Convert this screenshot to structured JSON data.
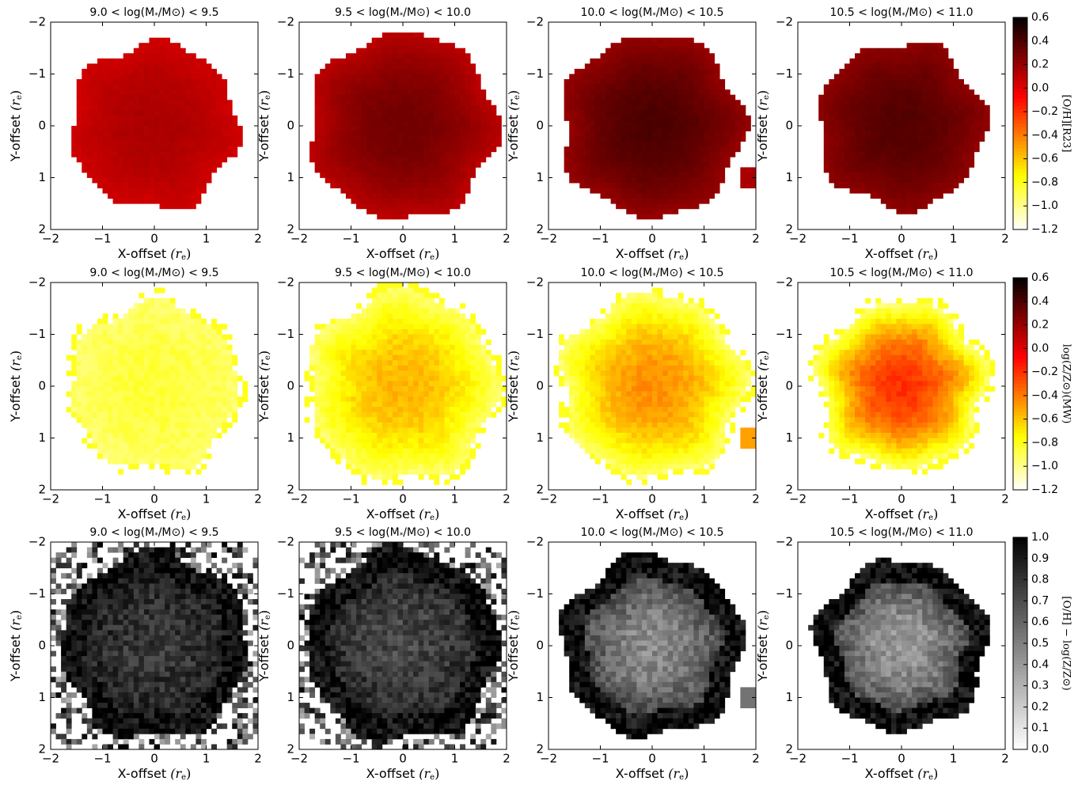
{
  "chart_data": {
    "type": "heatmap",
    "x_ticks": [
      "−2",
      "−1",
      "0",
      "1",
      "2"
    ],
    "y_ticks": [
      "−2",
      "−1",
      "0",
      "1",
      "2"
    ],
    "xlim": [
      -2,
      2
    ],
    "ylim": [
      2,
      -2
    ],
    "rows": [
      {
        "row": 1,
        "quantity": "[O/H][R23]",
        "colorbar_label": "[O/H][R23]",
        "colormap": "hot_r",
        "clim": [
          -1.2,
          0.6
        ],
        "colorbar_ticks": [
          "0.6",
          "0.4",
          "0.2",
          "0.0",
          "−0.2",
          "−0.4",
          "−0.6",
          "−0.8",
          "−1.0",
          "−1.2"
        ],
        "panels": [
          {
            "title_pre": "9.0 < log(M",
            "title_sub": "*",
            "title_post": "/M⊙) < 9.5",
            "xlabel_text": "X-offset ",
            "xlabel_sym": "(r",
            "xlabel_sub": "e",
            "xlabel_end": ")",
            "ylabel_text": "Y-offset ",
            "ylabel_sym": "(r",
            "ylabel_sub": "e",
            "ylabel_end": ")",
            "center_value": 0.15,
            "edge_value": 0.05,
            "radius_re": 1.6,
            "blob": false
          },
          {
            "title_pre": "9.5 < log(M",
            "title_sub": "*",
            "title_post": "/M⊙) < 10.0",
            "xlabel_text": "X-offset ",
            "xlabel_sym": "(r",
            "xlabel_sub": "e",
            "xlabel_end": ")",
            "ylabel_text": "Y-offset ",
            "ylabel_sym": "(r",
            "ylabel_sub": "e",
            "ylabel_end": ")",
            "center_value": 0.3,
            "edge_value": 0.1,
            "radius_re": 1.8,
            "blob": false
          },
          {
            "title_pre": "10.0 < log(M",
            "title_sub": "*",
            "title_post": "/M⊙) < 10.5",
            "xlabel_text": "X-offset ",
            "xlabel_sym": "(r",
            "xlabel_sub": "e",
            "xlabel_end": ")",
            "ylabel_text": "Y-offset ",
            "ylabel_sym": "(r",
            "ylabel_sub": "e",
            "ylabel_end": ")",
            "center_value": 0.4,
            "edge_value": 0.2,
            "radius_re": 1.75,
            "blob": true
          },
          {
            "title_pre": "10.5 < log(M",
            "title_sub": "*",
            "title_post": "/M⊙) < 11.0",
            "xlabel_text": "X-offset ",
            "xlabel_sym": "(r",
            "xlabel_sub": "e",
            "xlabel_end": ")",
            "ylabel_text": "Y-offset ",
            "ylabel_sym": "(r",
            "ylabel_sub": "e",
            "ylabel_end": ")",
            "center_value": 0.38,
            "edge_value": 0.22,
            "radius_re": 1.6,
            "blob": false
          }
        ]
      },
      {
        "row": 2,
        "quantity": "log(Z/Z⊙)(MW)",
        "colorbar_label": "log(Z/Z⊙)(MW)",
        "colormap": "hot_r",
        "clim": [
          -1.2,
          0.6
        ],
        "colorbar_ticks": [
          "0.6",
          "0.4",
          "0.2",
          "0.0",
          "−0.2",
          "−0.4",
          "−0.6",
          "−0.8",
          "−1.0",
          "−1.2"
        ],
        "panels": [
          {
            "title_pre": "9.0 < log(M",
            "title_sub": "*",
            "title_post": "/M⊙) < 9.5",
            "xlabel_text": "X-offset ",
            "xlabel_sym": "(r",
            "xlabel_sub": "e",
            "xlabel_end": ")",
            "ylabel_text": "Y-offset ",
            "ylabel_sym": "(r",
            "ylabel_sub": "e",
            "ylabel_end": ")",
            "center_value": -0.85,
            "edge_value": -0.95,
            "radius_re": 1.6,
            "blob": false
          },
          {
            "title_pre": "9.5 < log(M",
            "title_sub": "*",
            "title_post": "/M⊙) < 10.0",
            "xlabel_text": "X-offset ",
            "xlabel_sym": "(r",
            "xlabel_sub": "e",
            "xlabel_end": ")",
            "ylabel_text": "Y-offset ",
            "ylabel_sym": "(r",
            "ylabel_sub": "e",
            "ylabel_end": ")",
            "center_value": -0.55,
            "edge_value": -0.95,
            "radius_re": 1.8,
            "blob": false
          },
          {
            "title_pre": "10.0 < log(M",
            "title_sub": "*",
            "title_post": "/M⊙) < 10.5",
            "xlabel_text": "X-offset ",
            "xlabel_sym": "(r",
            "xlabel_sub": "e",
            "xlabel_end": ")",
            "ylabel_text": "Y-offset ",
            "ylabel_sym": "(r",
            "ylabel_sub": "e",
            "ylabel_end": ")",
            "center_value": -0.45,
            "edge_value": -0.95,
            "radius_re": 1.75,
            "blob": true
          },
          {
            "title_pre": "10.5 < log(M",
            "title_sub": "*",
            "title_post": "/M⊙) < 11.0",
            "xlabel_text": "X-offset ",
            "xlabel_sym": "(r",
            "xlabel_sub": "e",
            "xlabel_end": ")",
            "ylabel_text": "Y-offset ",
            "ylabel_sym": "(r",
            "ylabel_sub": "e",
            "ylabel_end": ")",
            "center_value": -0.2,
            "edge_value": -0.95,
            "radius_re": 1.6,
            "blob": false
          }
        ]
      },
      {
        "row": 3,
        "quantity": "[O/H] − log(Z/Z⊙)",
        "colorbar_label": "[O/H] − log(Z/Z⊙)",
        "colormap": "gray_r",
        "clim": [
          0.0,
          1.0
        ],
        "colorbar_ticks": [
          "1.0",
          "0.9",
          "0.8",
          "0.7",
          "0.6",
          "0.5",
          "0.4",
          "0.3",
          "0.2",
          "0.1",
          "0.0"
        ],
        "panels": [
          {
            "title_pre": "9.0 < log(M",
            "title_sub": "*",
            "title_post": "/M⊙) < 9.5",
            "xlabel_text": "X-offset ",
            "xlabel_sym": "(r",
            "xlabel_sub": "e",
            "xlabel_end": ")",
            "ylabel_text": "Y-offset ",
            "ylabel_sym": "(r",
            "ylabel_sub": "e",
            "ylabel_end": ")",
            "center_value": 0.78,
            "edge_value": 0.95,
            "radius_re": 1.8,
            "blob": false
          },
          {
            "title_pre": "9.5 < log(M",
            "title_sub": "*",
            "title_post": "/M⊙) < 10.0",
            "xlabel_text": "X-offset ",
            "xlabel_sym": "(r",
            "xlabel_sub": "e",
            "xlabel_end": ")",
            "ylabel_text": "Y-offset ",
            "ylabel_sym": "(r",
            "ylabel_sub": "e",
            "ylabel_end": ")",
            "center_value": 0.72,
            "edge_value": 0.95,
            "radius_re": 1.85,
            "blob": false
          },
          {
            "title_pre": "10.0 < log(M",
            "title_sub": "*",
            "title_post": "/M⊙) < 10.5",
            "xlabel_text": "X-offset ",
            "xlabel_sym": "(r",
            "xlabel_sub": "e",
            "xlabel_end": ")",
            "ylabel_text": "Y-offset ",
            "ylabel_sym": "(r",
            "ylabel_sub": "e",
            "ylabel_end": ")",
            "center_value": 0.45,
            "edge_value": 0.95,
            "radius_re": 1.75,
            "blob": true
          },
          {
            "title_pre": "10.5 < log(M",
            "title_sub": "*",
            "title_post": "/M⊙) < 11.0",
            "xlabel_text": "X-offset ",
            "xlabel_sym": "(r",
            "xlabel_sub": "e",
            "xlabel_end": ")",
            "ylabel_text": "Y-offset ",
            "ylabel_sym": "(r",
            "ylabel_sub": "e",
            "ylabel_end": ")",
            "center_value": 0.4,
            "edge_value": 0.95,
            "radius_re": 1.65,
            "blob": false
          }
        ]
      }
    ]
  }
}
